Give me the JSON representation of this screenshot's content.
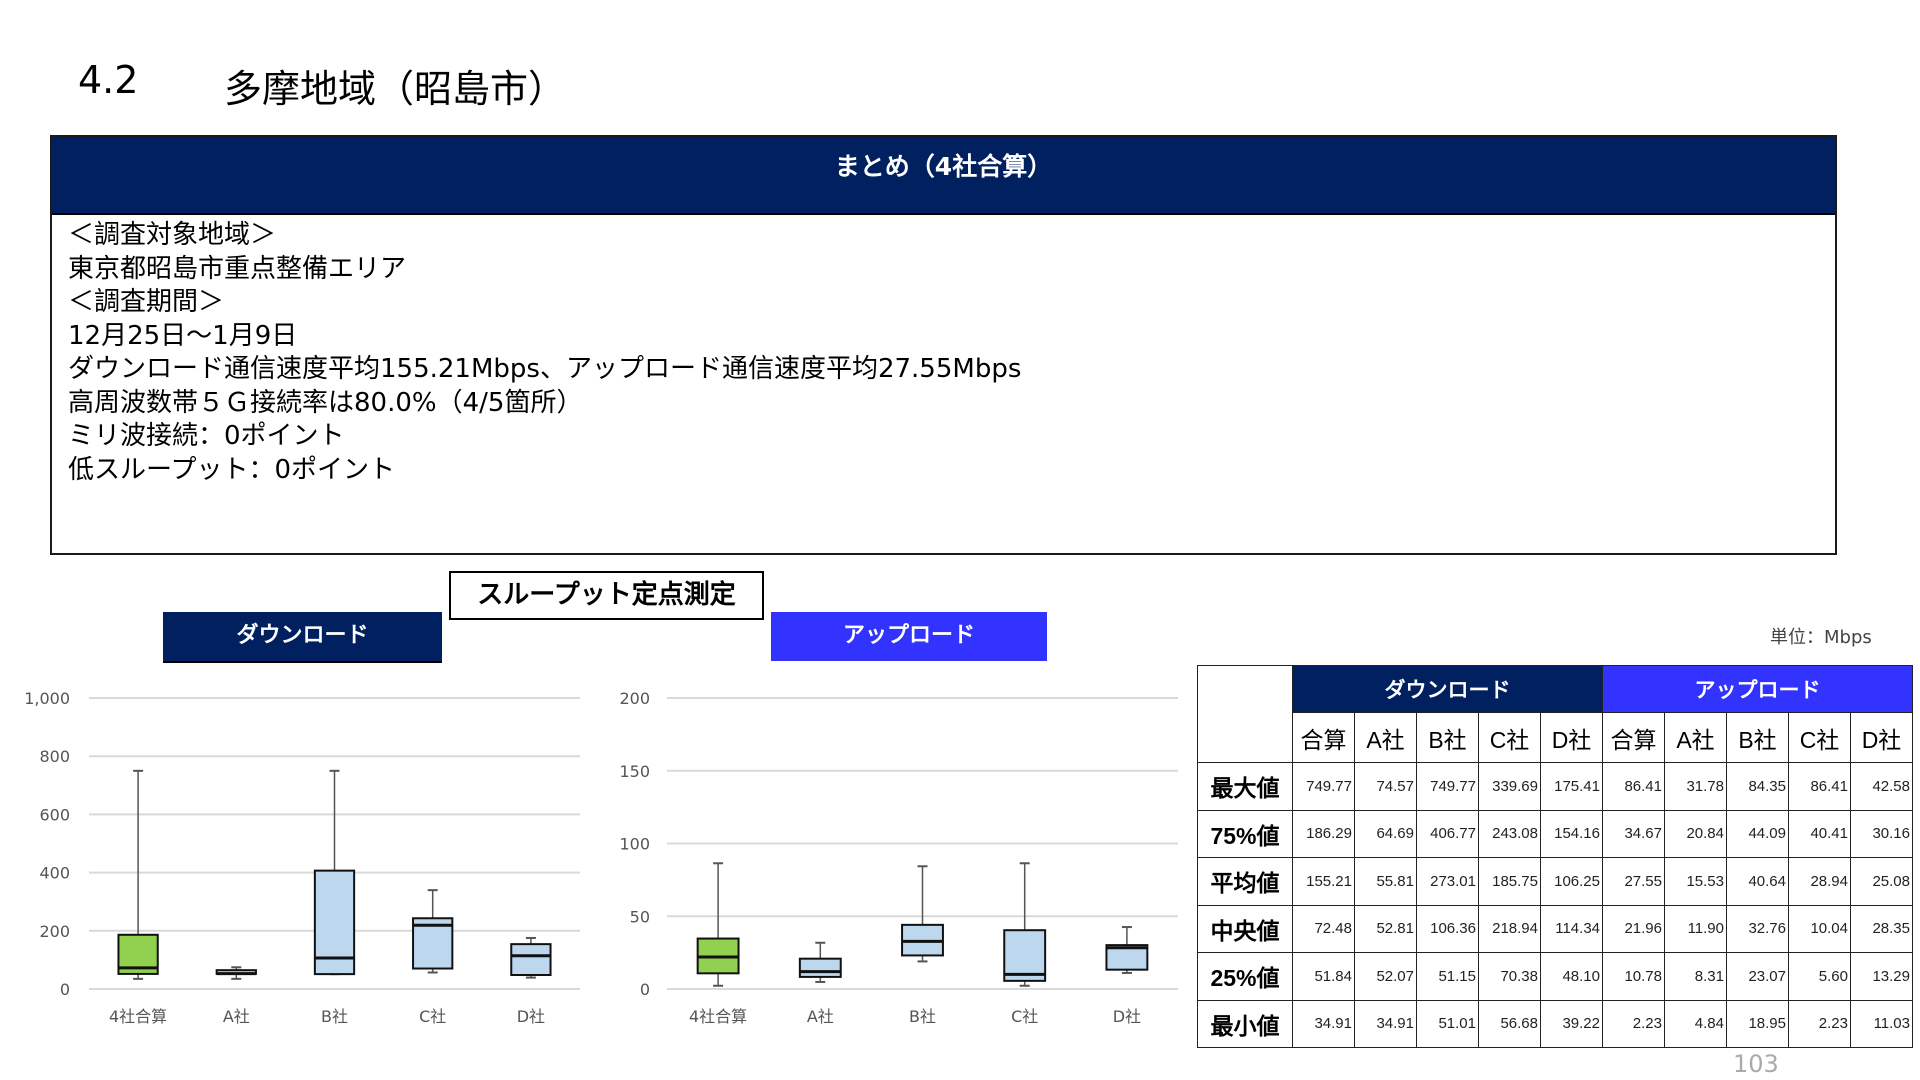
{
  "title": {
    "number": "4.2",
    "text": "多摩地域（昭島市）"
  },
  "summary": {
    "heading": "まとめ（4社合算）",
    "lines": [
      "＜調査対象地域＞",
      "東京都昭島市重点整備エリア",
      "＜調査期間＞",
      "12月25日～1月9日",
      "ダウンロード通信速度平均155.21Mbps、アップロード通信速度平均27.55Mbps",
      "高周波数帯５Ｇ接続率は80.0%（4/5箇所）",
      "ミリ波接続：0ポイント",
      "低スループット：0ポイント"
    ]
  },
  "section_label": "スループット定点測定",
  "download_label": "ダウンロード",
  "upload_label": "アップロード",
  "unit": "単位：Mbps",
  "colors": {
    "navy": "#002060",
    "upload_blue": "#3333ff",
    "combined_box": "#92d050",
    "company_box": "#bdd7ee"
  },
  "chart_data": [
    {
      "type": "box",
      "categories": [
        "4社合算",
        "A社",
        "B社",
        "C社",
        "D社"
      ],
      "ylim": [
        0,
        1000
      ],
      "yticks": [
        0,
        200,
        400,
        600,
        800,
        1000
      ],
      "ytick_labels": [
        "0",
        "200",
        "400",
        "600",
        "800",
        "1,000"
      ],
      "grid": true,
      "series": {
        "max": [
          749.77,
          74.57,
          749.77,
          339.69,
          175.41
        ],
        "q3": [
          186.29,
          64.69,
          406.77,
          243.08,
          154.16
        ],
        "median": [
          72.48,
          52.81,
          106.36,
          218.94,
          114.34
        ],
        "q1": [
          51.84,
          52.07,
          51.15,
          70.38,
          48.1
        ],
        "min": [
          34.91,
          34.91,
          51.01,
          56.68,
          39.22
        ]
      }
    },
    {
      "type": "box",
      "categories": [
        "4社合算",
        "A社",
        "B社",
        "C社",
        "D社"
      ],
      "ylim": [
        0,
        200
      ],
      "yticks": [
        0,
        50,
        100,
        150,
        200
      ],
      "ytick_labels": [
        "0",
        "50",
        "100",
        "150",
        "200"
      ],
      "grid": true,
      "series": {
        "max": [
          86.41,
          31.78,
          84.35,
          86.41,
          42.58
        ],
        "q3": [
          34.67,
          20.84,
          44.09,
          40.41,
          30.16
        ],
        "median": [
          21.96,
          11.9,
          32.76,
          10.04,
          28.35
        ],
        "q1": [
          10.78,
          8.31,
          23.07,
          5.6,
          13.29
        ],
        "min": [
          2.23,
          4.84,
          18.95,
          2.23,
          11.03
        ]
      }
    }
  ],
  "table": {
    "group_headers": [
      "ダウンロード",
      "アップロード"
    ],
    "sub_headers": [
      "合算",
      "A社",
      "B社",
      "C社",
      "D社",
      "合算",
      "A社",
      "B社",
      "C社",
      "D社"
    ],
    "rows": [
      {
        "label": "最大値",
        "values": [
          "749.77",
          "74.57",
          "749.77",
          "339.69",
          "175.41",
          "86.41",
          "31.78",
          "84.35",
          "86.41",
          "42.58"
        ]
      },
      {
        "label": "75%値",
        "values": [
          "186.29",
          "64.69",
          "406.77",
          "243.08",
          "154.16",
          "34.67",
          "20.84",
          "44.09",
          "40.41",
          "30.16"
        ]
      },
      {
        "label": "平均値",
        "values": [
          "155.21",
          "55.81",
          "273.01",
          "185.75",
          "106.25",
          "27.55",
          "15.53",
          "40.64",
          "28.94",
          "25.08"
        ]
      },
      {
        "label": "中央値",
        "values": [
          "72.48",
          "52.81",
          "106.36",
          "218.94",
          "114.34",
          "21.96",
          "11.90",
          "32.76",
          "10.04",
          "28.35"
        ]
      },
      {
        "label": "25%値",
        "values": [
          "51.84",
          "52.07",
          "51.15",
          "70.38",
          "48.10",
          "10.78",
          "8.31",
          "23.07",
          "5.60",
          "13.29"
        ]
      },
      {
        "label": "最小値",
        "values": [
          "34.91",
          "34.91",
          "51.01",
          "56.68",
          "39.22",
          "2.23",
          "4.84",
          "18.95",
          "2.23",
          "11.03"
        ]
      }
    ]
  },
  "page_number": "103"
}
